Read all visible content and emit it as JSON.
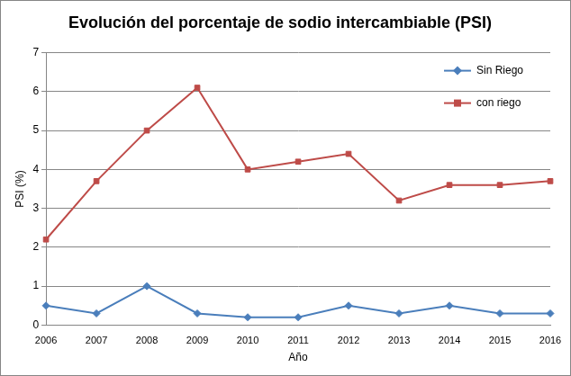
{
  "chart_data": {
    "type": "line",
    "title": "Evolución del porcentaje de sodio intercambiable (PSI)",
    "x_label": "Año",
    "y_label": "PSI (%)",
    "categories": [
      "2006",
      "2007",
      "2008",
      "2009",
      "2010",
      "2011",
      "2012",
      "2013",
      "2014",
      "2015",
      "2016"
    ],
    "series": [
      {
        "name": "Sin Riego",
        "color": "#4a7ebb",
        "marker": "diamond",
        "values": [
          0.5,
          0.3,
          1.0,
          0.3,
          0.2,
          0.2,
          0.5,
          0.3,
          0.5,
          0.3,
          0.3
        ]
      },
      {
        "name": "con riego",
        "color": "#be4b48",
        "marker": "square",
        "values": [
          2.2,
          3.7,
          5.0,
          6.1,
          4.0,
          4.2,
          4.4,
          3.2,
          3.6,
          3.6,
          3.7
        ]
      }
    ],
    "ylim": [
      0,
      7
    ],
    "yticks": [
      0,
      1,
      2,
      3,
      4,
      5,
      6,
      7
    ],
    "grid": true,
    "legend": "upper right"
  }
}
